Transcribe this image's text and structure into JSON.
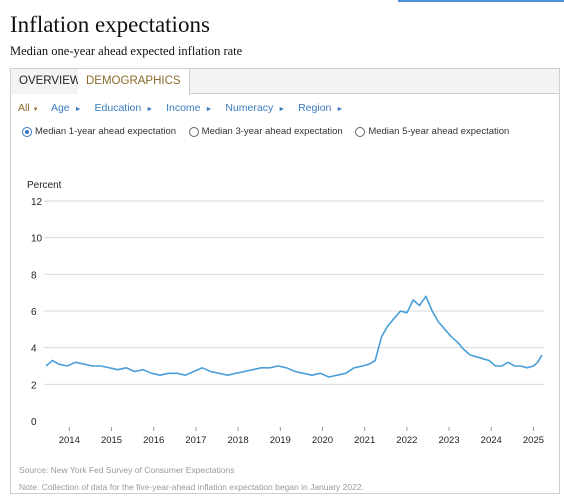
{
  "page": {
    "title": "Inflation expectations",
    "subtitle": "Median one-year ahead expected inflation rate"
  },
  "tabs": [
    {
      "label": "OVERVIEW",
      "active": false
    },
    {
      "label": "DEMOGRAPHICS",
      "active": true
    }
  ],
  "filters": [
    "All",
    "Age",
    "Education",
    "Income",
    "Numeracy",
    "Region"
  ],
  "radios": [
    {
      "label": "Median 1-year ahead expectation",
      "selected": true
    },
    {
      "label": "Median 3-year ahead expectation",
      "selected": false
    },
    {
      "label": "Median 5-year ahead expectation",
      "selected": false
    }
  ],
  "footer": {
    "source": "Source: New York Fed Survey of Consumer Expectations",
    "note": "Note: Collection of data for the five-year-ahead inflation expectation began in January 2022."
  },
  "colors": {
    "line": "#4a9fd8",
    "accent": "#8a6a2a",
    "link": "#3a7bbf"
  },
  "chart_data": {
    "type": "line",
    "ylabel": "Percent",
    "ylim": [
      0,
      12
    ],
    "yticks": [
      0,
      2,
      4,
      6,
      8,
      10,
      12
    ],
    "xticks": [
      2014,
      2015,
      2016,
      2017,
      2018,
      2019,
      2020,
      2021,
      2022,
      2023,
      2024,
      2025
    ],
    "xlim": [
      2013.4,
      2025.25
    ],
    "grid": true,
    "series": [
      {
        "x": [
          2013.45,
          2013.6,
          2013.75,
          2013.95,
          2014.15,
          2014.35,
          2014.55,
          2014.75,
          2014.95,
          2015.15,
          2015.35,
          2015.55,
          2015.75,
          2015.95,
          2016.15,
          2016.35,
          2016.55,
          2016.75,
          2016.95,
          2017.15,
          2017.35,
          2017.55,
          2017.75,
          2017.95,
          2018.15,
          2018.35,
          2018.55,
          2018.75,
          2018.95,
          2019.15,
          2019.35,
          2019.55,
          2019.75,
          2019.95,
          2020.15,
          2020.35,
          2020.55,
          2020.75,
          2020.95,
          2021.1,
          2021.25,
          2021.4,
          2021.55,
          2021.7,
          2021.85,
          2022.0,
          2022.15,
          2022.3,
          2022.45,
          2022.6,
          2022.75,
          2022.9,
          2023.05,
          2023.2,
          2023.35,
          2023.5,
          2023.65,
          2023.8,
          2023.95,
          2024.1,
          2024.25,
          2024.4,
          2024.55,
          2024.7,
          2024.85,
          2025.0,
          2025.1,
          2025.2
        ],
        "y": [
          3.0,
          3.3,
          3.1,
          3.0,
          3.2,
          3.1,
          3.0,
          3.0,
          2.9,
          2.8,
          2.9,
          2.7,
          2.8,
          2.6,
          2.5,
          2.6,
          2.6,
          2.5,
          2.7,
          2.9,
          2.7,
          2.6,
          2.5,
          2.6,
          2.7,
          2.8,
          2.9,
          2.9,
          3.0,
          2.9,
          2.7,
          2.6,
          2.5,
          2.6,
          2.4,
          2.5,
          2.6,
          2.9,
          3.0,
          3.1,
          3.3,
          4.6,
          5.2,
          5.6,
          6.0,
          5.9,
          6.6,
          6.3,
          6.8,
          6.0,
          5.4,
          5.0,
          4.6,
          4.3,
          3.9,
          3.6,
          3.5,
          3.4,
          3.3,
          3.0,
          3.0,
          3.2,
          3.0,
          3.0,
          2.9,
          3.0,
          3.2,
          3.6
        ]
      }
    ]
  }
}
